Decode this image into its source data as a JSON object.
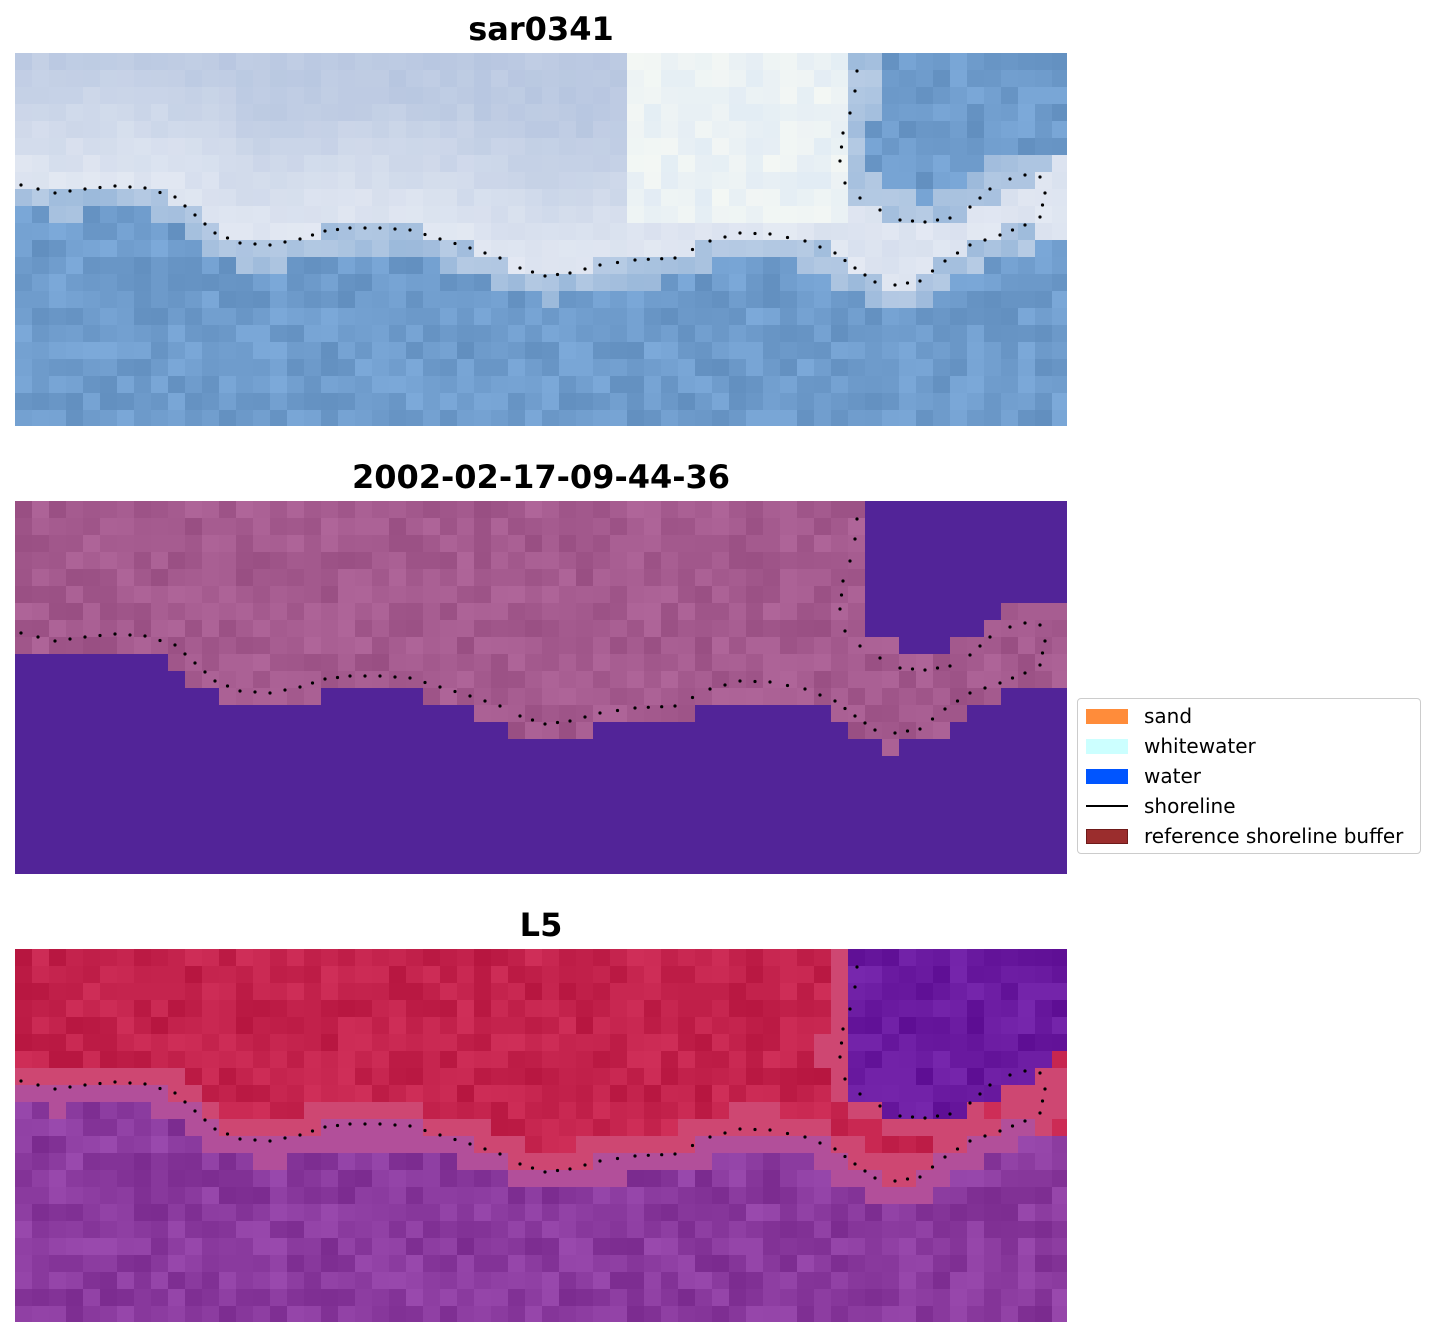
{
  "chart_data": [
    {
      "type": "image",
      "title": "sar0341",
      "colormap": "rgb",
      "base_color": "#6f9ccc",
      "land_color": "#d2dbe9",
      "shoreline_style": "dotted-black"
    },
    {
      "type": "image",
      "title": "2002-02-17-09-44-36",
      "colormap": "classified",
      "water_color": "#522498",
      "land_color": "#a45a8e",
      "shoreline_style": "dotted-black"
    },
    {
      "type": "image",
      "title": "L5",
      "colormap": "plasma",
      "water_color": "#8c3a9c",
      "land_color": "#c02448",
      "shoreline_style": "dotted-black"
    }
  ],
  "legend": {
    "items": [
      {
        "label": "sand",
        "kind": "patch",
        "color": "#ff8c3a"
      },
      {
        "label": "whitewater",
        "kind": "patch",
        "color": "#ccffff"
      },
      {
        "label": "water",
        "kind": "patch",
        "color": "#0055ff"
      },
      {
        "label": "shoreline",
        "kind": "line",
        "color": "#000000"
      },
      {
        "label": "reference shoreline buffer",
        "kind": "patch",
        "color": "#9b2d2d"
      }
    ]
  }
}
